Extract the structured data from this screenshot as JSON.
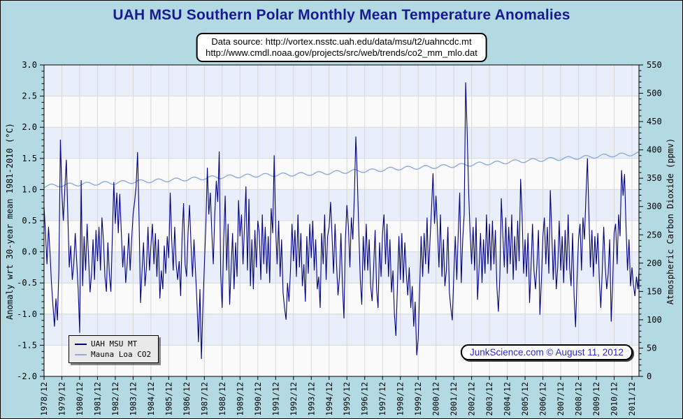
{
  "page": {
    "title": "UAH MSU Southern Polar Monthly Mean Temperature Anomalies",
    "background_color": "#b3d9e3",
    "title_color": "#191994"
  },
  "source_box": {
    "line1": "Data source: http://vortex.nsstc.uah.edu/data/msu/t2/uahncdc.mt",
    "line2": "http://www.cmdl.noaa.gov/projects/src/web/trends/co2_mm_mlo.dat"
  },
  "legend": {
    "items": [
      {
        "label": "UAH MSU MT",
        "color": "#000080"
      },
      {
        "label": "Mauna Loa CO2",
        "color": "#8cacdf"
      }
    ]
  },
  "attribution": {
    "text": "JunkScience.com © August 11, 2012",
    "color": "#2a2ac8"
  },
  "chart_data": {
    "type": "line",
    "title": "UAH MSU Southern Polar Monthly Mean Temperature Anomalies",
    "xlabel": "",
    "x_tick_labels": [
      "1978/12",
      "1979/12",
      "1980/12",
      "1981/12",
      "1982/12",
      "1983/12",
      "1984/12",
      "1985/12",
      "1986/12",
      "1987/12",
      "1988/12",
      "1989/12",
      "1990/12",
      "1991/12",
      "1992/12",
      "1993/12",
      "1994/12",
      "1995/12",
      "1996/12",
      "1997/12",
      "1998/12",
      "1999/12",
      "2000/12",
      "2001/12",
      "2002/12",
      "2003/12",
      "2004/12",
      "2005/12",
      "2006/12",
      "2007/12",
      "2008/12",
      "2009/12",
      "2010/12",
      "2011/12"
    ],
    "left_axis": {
      "label": "Anomaly wrt 30-year mean 1981-2010 (°C)",
      "min": -2.0,
      "max": 3.0,
      "major_step": 0.5,
      "minor_step": 0.1,
      "tick_labels": [
        "3.0",
        "2.5",
        "2.0",
        "1.5",
        "1.0",
        "0.5",
        "0.0",
        "-0.5",
        "-1.0",
        "-1.5",
        "-2.0"
      ]
    },
    "right_axis": {
      "label": "Atmospheric Carbon Dioxide (ppmv)",
      "min": 0,
      "max": 550,
      "major_step": 50,
      "minor_step": 10,
      "tick_labels": [
        "550",
        "500",
        "450",
        "400",
        "350",
        "300",
        "250",
        "200",
        "150",
        "100",
        "50",
        "0"
      ]
    },
    "plot_style": {
      "band_color_a": "#e9eefb",
      "band_color_b": "#fafafa",
      "band_height_units": 0.5,
      "grid_color": "#d8d8d8",
      "border_color": "#000000"
    },
    "series": [
      {
        "name": "UAH MSU MT",
        "color": "#000080",
        "axis": "left",
        "cadence": "monthly",
        "start": "1978/12",
        "values": [
          0.72,
          0.3,
          -0.2,
          0.4,
          0.0,
          -0.5,
          -0.85,
          -1.2,
          -0.75,
          -1.1,
          -0.3,
          1.8,
          0.95,
          0.5,
          1.0,
          1.48,
          0.6,
          -0.25,
          0.1,
          -0.45,
          -0.2,
          0.3,
          -0.15,
          -0.6,
          -1.3,
          1.15,
          -0.55,
          0.25,
          -0.3,
          0.45,
          -0.1,
          -0.65,
          -0.35,
          0.2,
          -0.45,
          0.35,
          -0.15,
          0.4,
          -0.3,
          0.55,
          0.2,
          -0.4,
          -0.64,
          0.15,
          -0.35,
          -0.64,
          0.25,
          1.12,
          0.45,
          0.95,
          0.3,
          0.93,
          0.35,
          -0.25,
          0.1,
          -0.5,
          -0.2,
          0.3,
          -0.3,
          0.2,
          0.6,
          0.8,
          1.05,
          1.6,
          0.55,
          -0.82,
          -0.3,
          0.15,
          -0.55,
          -0.25,
          0.4,
          -0.3,
          0.1,
          0.45,
          -0.2,
          0.3,
          -0.4,
          0.2,
          -0.75,
          -0.3,
          -0.6,
          0.1,
          -0.35,
          0.25,
          -0.1,
          0.95,
          0.2,
          -0.3,
          0.4,
          -0.2,
          -0.45,
          -0.15,
          -0.71,
          0.25,
          0.78,
          -0.2,
          -0.4,
          0.3,
          0.75,
          0.1,
          -0.4,
          0.2,
          -0.3,
          -0.8,
          -1.45,
          -0.6,
          -1.72,
          -0.9,
          -0.2,
          0.45,
          1.35,
          0.6,
          0.95,
          0.3,
          -0.2,
          0.6,
          1.14,
          0.8,
          1.61,
          -0.35,
          -0.9,
          0.2,
          0.9,
          -0.3,
          0.45,
          -0.85,
          -0.25,
          0.3,
          -0.6,
          0.15,
          -0.4,
          0.83,
          0.25,
          0.6,
          -0.2,
          0.4,
          1.05,
          -0.3,
          0.85,
          -0.55,
          0.2,
          -0.6,
          0.35,
          -0.25,
          0.5,
          0.3,
          -0.45,
          0.6,
          -0.2,
          0.4,
          -0.35,
          0.25,
          -0.5,
          0.7,
          0.3,
          1.55,
          0.4,
          -0.2,
          0.5,
          -0.4,
          0.2,
          -0.65,
          -0.9,
          -1.09,
          -0.5,
          -0.8,
          -0.3,
          0.45,
          -0.15,
          0.35,
          -0.4,
          0.6,
          -0.25,
          0.3,
          -0.55,
          -0.2,
          -0.8,
          0.25,
          -0.35,
          0.45,
          -0.1,
          0.5,
          -0.3,
          0.2,
          -0.6,
          -0.4,
          -0.9,
          0.3,
          -0.2,
          0.6,
          -0.45,
          0.25,
          0.4,
          0.8,
          0.25,
          -0.35,
          0.45,
          -0.2,
          -0.7,
          -0.4,
          0.3,
          -0.55,
          -1.07,
          0.2,
          0.75,
          0.4,
          -0.25,
          0.55,
          0.2,
          0.9,
          1.85,
          1.2,
          0.35,
          -0.45,
          -0.85,
          0.25,
          -0.3,
          0.45,
          -0.3,
          0.2,
          -0.55,
          -0.79,
          -0.25,
          0.35,
          -0.6,
          -0.9,
          0.15,
          -0.4,
          0.3,
          0.6,
          -0.2,
          0.45,
          -0.4,
          0.2,
          -0.65,
          -0.3,
          -1.0,
          -1.35,
          -0.6,
          0.25,
          -0.45,
          0.3,
          -0.5,
          0.15,
          -0.35,
          -0.7,
          -0.25,
          -0.9,
          -0.55,
          -1.2,
          -0.8,
          -1.66,
          -1.4,
          -0.6,
          0.25,
          -0.4,
          0.3,
          -0.2,
          0.55,
          -0.35,
          0.2,
          0.7,
          1.26,
          0.45,
          0.9,
          0.35,
          -0.25,
          0.6,
          -0.4,
          0.2,
          -0.55,
          -0.3,
          0.4,
          -0.65,
          -0.9,
          -1.1,
          -0.35,
          0.25,
          -0.45,
          0.3,
          0.95,
          -0.5,
          0.2,
          0.6,
          2.72,
          1.9,
          0.95,
          0.3,
          -0.2,
          0.4,
          -0.3,
          0.55,
          -0.77,
          -0.25,
          0.3,
          -0.5,
          0.2,
          -0.35,
          0.6,
          -0.2,
          0.45,
          -0.3,
          0.5,
          -0.2,
          0.35,
          -0.55,
          -0.96,
          -0.4,
          0.86,
          0.3,
          -0.25,
          0.55,
          -0.35,
          0.4,
          -0.2,
          0.6,
          -0.45,
          0.25,
          -0.3,
          0.5,
          -0.15,
          1.17,
          0.6,
          -0.35,
          0.2,
          -0.4,
          0.3,
          -0.82,
          -0.25,
          0.45,
          -0.3,
          -0.6,
          -0.2,
          0.35,
          -1.01,
          -0.45,
          0.25,
          0.55,
          -0.2,
          0.4,
          -0.35,
          0.99,
          0.3,
          -0.45,
          0.2,
          -0.6,
          -0.25,
          0.5,
          -0.3,
          0.25,
          -0.5,
          0.35,
          -0.3,
          0.6,
          -0.25,
          -0.55,
          0.3,
          -0.7,
          -1.21,
          -0.45,
          0.2,
          0.45,
          -0.3,
          0.55,
          0.2,
          0.9,
          1.5,
          0.6,
          -0.25,
          0.35,
          -0.4,
          0.25,
          -0.2,
          0.3,
          -0.45,
          -0.9,
          -0.3,
          0.4,
          -0.25,
          -0.6,
          -0.35,
          0.2,
          -1.12,
          -0.5,
          0.3,
          0.45,
          -0.2,
          0.6,
          0.25,
          1.31,
          0.9,
          1.25,
          0.4,
          -0.3,
          0.2,
          -0.55,
          -0.25,
          -0.53,
          -0.71,
          -0.4,
          -0.6,
          -0.2,
          0.32
        ]
      },
      {
        "name": "Mauna Loa CO2",
        "color": "#8cacdf",
        "axis": "right",
        "cadence": "annual_mean_with_seasonal_cycle",
        "years": [
          1978,
          1979,
          1980,
          1981,
          1982,
          1983,
          1984,
          1985,
          1986,
          1987,
          1988,
          1989,
          1990,
          1991,
          1992,
          1993,
          1994,
          1995,
          1996,
          1997,
          1998,
          1999,
          2000,
          2001,
          2002,
          2003,
          2004,
          2005,
          2006,
          2007,
          2008,
          2009,
          2010,
          2011,
          2012
        ],
        "values": [
          335.4,
          336.8,
          338.7,
          340.1,
          341.4,
          343.0,
          344.4,
          346.0,
          347.4,
          349.2,
          351.6,
          353.1,
          354.4,
          355.6,
          356.4,
          357.1,
          358.8,
          360.8,
          362.6,
          363.7,
          366.7,
          368.4,
          369.5,
          371.1,
          373.2,
          375.8,
          377.5,
          379.8,
          381.9,
          383.8,
          385.6,
          387.4,
          389.9,
          391.6,
          393.8
        ],
        "seasonal_amplitude_ppmv": 3
      }
    ]
  }
}
